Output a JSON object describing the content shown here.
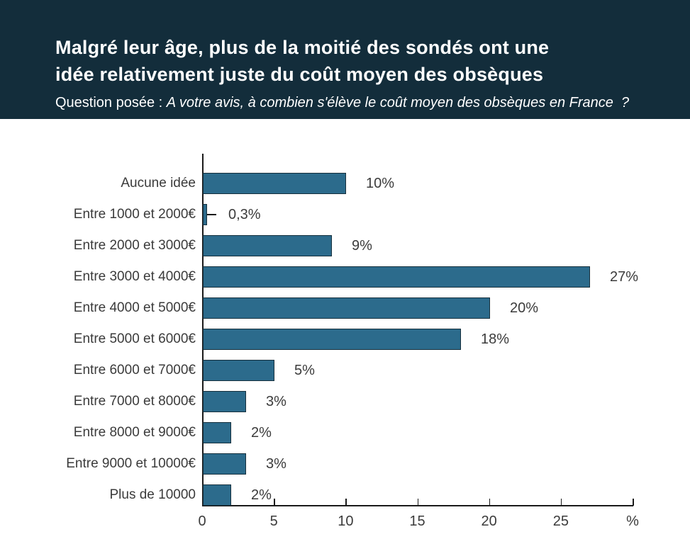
{
  "header": {
    "title_line1": "Malgré leur âge, plus de la moitié des sondés ont une",
    "title_line2": "idée relativement juste du coût moyen des obsèques",
    "subtitle_prefix": "Question posée : ",
    "subtitle_italic": "A votre avis, à combien s'élève le coût moyen des obsèques en France  ?",
    "bg_color": "#132d3b",
    "text_color": "#ffffff"
  },
  "chart_data": {
    "type": "bar",
    "orientation": "horizontal",
    "title": "",
    "categories": [
      "Aucune idée",
      "Entre 1000 et 2000€",
      "Entre 2000 et 3000€",
      "Entre 3000 et 4000€",
      "Entre 4000 et 5000€",
      "Entre 5000 et 6000€",
      "Entre 6000 et 7000€",
      "Entre 7000 et 8000€",
      "Entre 8000 et 9000€",
      "Entre 9000 et 10000€",
      "Plus de 10000"
    ],
    "values": [
      10,
      0.3,
      9,
      27,
      20,
      18,
      5,
      3,
      2,
      3,
      2
    ],
    "value_labels": [
      "10%",
      "0,3%",
      "9%",
      "27%",
      "20%",
      "18%",
      "5%",
      "3%",
      "2%",
      "3%",
      "2%"
    ],
    "xlabel": "%",
    "xlim": [
      0,
      30
    ],
    "x_tick_labels": [
      "0",
      "5",
      "10",
      "15",
      "20",
      "25",
      "%"
    ],
    "grid": false,
    "legend": false,
    "bar_color": "#2c6b8c",
    "bar_border_color": "#16303d",
    "axis_color": "#1a1a1a",
    "label_color": "#3b3b3b"
  }
}
